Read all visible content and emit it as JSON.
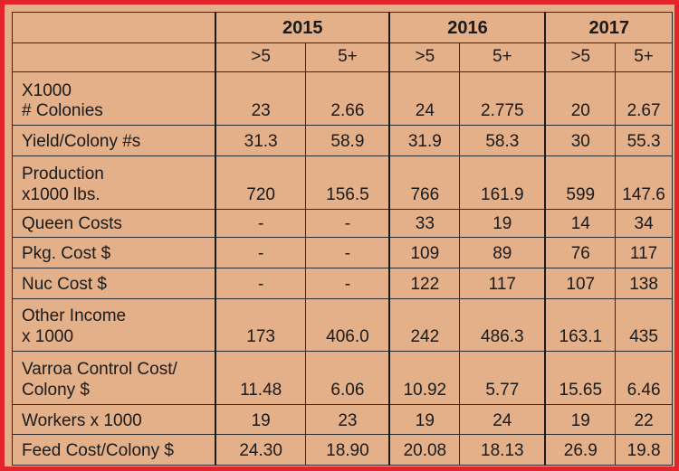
{
  "colors": {
    "border": "#e3242b",
    "background": "#e3b089",
    "text": "#1a1a1a"
  },
  "years": [
    "2015",
    "2016",
    "2017"
  ],
  "subheaders": [
    ">5",
    "5+",
    ">5",
    "5+",
    ">5",
    "5+"
  ],
  "rows": [
    {
      "label": "X1000\n# Colonies",
      "values": [
        "23",
        "2.66",
        "24",
        "2.775",
        "20",
        "2.67"
      ]
    },
    {
      "label": "Yield/Colony #s",
      "values": [
        "31.3",
        "58.9",
        "31.9",
        "58.3",
        "30",
        "55.3"
      ]
    },
    {
      "label": "Production\nx1000 lbs.",
      "values": [
        "720",
        "156.5",
        "766",
        "161.9",
        "599",
        "147.6"
      ]
    },
    {
      "label": "Queen Costs",
      "values": [
        "-",
        "-",
        "33",
        "19",
        "14",
        "34"
      ]
    },
    {
      "label": "Pkg. Cost $",
      "values": [
        "-",
        "-",
        "109",
        "89",
        "76",
        "117"
      ]
    },
    {
      "label": "Nuc Cost $",
      "values": [
        "-",
        "-",
        "122",
        "117",
        "107",
        "138"
      ]
    },
    {
      "label": "Other Income\nx 1000",
      "values": [
        "173",
        "406.0",
        "242",
        "486.3",
        "163.1",
        "435"
      ]
    },
    {
      "label": "Varroa Control Cost/\nColony $",
      "values": [
        "11.48",
        "6.06",
        "10.92",
        "5.77",
        "15.65",
        "6.46"
      ]
    },
    {
      "label": "Workers x 1000",
      "values": [
        "19",
        "23",
        "19",
        "24",
        "19",
        "22"
      ]
    },
    {
      "label": "Feed Cost/Colony $",
      "values": [
        "24.30",
        "18.90",
        "20.08",
        "18.13",
        "26.9",
        "19.8"
      ]
    }
  ]
}
